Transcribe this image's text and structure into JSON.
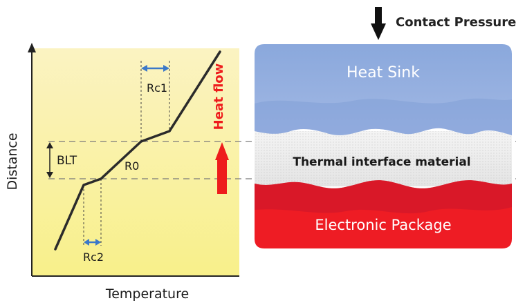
{
  "graph": {
    "y_axis_label": "Distance",
    "x_axis_label": "Temperature",
    "blt_label": "BLT",
    "r0_label": "R0",
    "rc1_label": "Rc1",
    "rc2_label": "Rc2",
    "heat_flow_label": "Heat flow",
    "background_colors": [
      "#fbf3c4",
      "#f8f08a"
    ],
    "profile_color": "#2b2b2b",
    "resistance_arrow_color": "#3b78c9",
    "heat_flow_color": "#ee1c1c"
  },
  "stack": {
    "pressure_label": "Contact Pressure",
    "heat_sink_label": "Heat Sink",
    "tim_label": "Thermal interface material",
    "package_label": "Electronic Package",
    "heat_sink_color": "#8eacdc",
    "tim_color": "#ececec",
    "package_color": "#ec1c24"
  }
}
